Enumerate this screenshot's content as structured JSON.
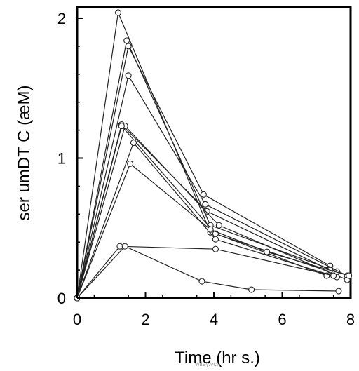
{
  "chart_data": {
    "type": "line",
    "xlabel": "Time (hr s.)",
    "ylabel": "ser umDT C (æM)",
    "xlim": [
      0,
      8
    ],
    "ylim": [
      0,
      2.08
    ],
    "xticks": [
      0,
      2,
      4,
      6,
      8
    ],
    "yticks": [
      0,
      1,
      2
    ],
    "xtick_labels": [
      "0",
      "2",
      "4",
      "6",
      "8"
    ],
    "ytick_labels": [
      "0",
      "1",
      "2"
    ],
    "grid": false,
    "marker": "open-circle",
    "series": [
      {
        "x": [
          0,
          1.2,
          3.9,
          7.5
        ],
        "y": [
          0,
          2.04,
          0.47,
          0.18
        ]
      },
      {
        "x": [
          0,
          1.45,
          3.9,
          7.6
        ],
        "y": [
          0,
          1.84,
          0.52,
          0.19
        ]
      },
      {
        "x": [
          0,
          1.5,
          3.7,
          7.4
        ],
        "y": [
          0,
          1.8,
          0.74,
          0.23
        ]
      },
      {
        "x": [
          0,
          1.5,
          3.75,
          7.9
        ],
        "y": [
          0,
          1.59,
          0.67,
          0.16
        ]
      },
      {
        "x": [
          0,
          1.3,
          3.8,
          7.4
        ],
        "y": [
          0,
          1.24,
          0.62,
          0.2
        ]
      },
      {
        "x": [
          0,
          1.4,
          4.15,
          7.9
        ],
        "y": [
          0,
          1.23,
          0.52,
          0.13
        ]
      },
      {
        "x": [
          0,
          1.3,
          4.05,
          7.3
        ],
        "y": [
          0,
          1.23,
          0.46,
          0.16
        ]
      },
      {
        "x": [
          0,
          1.65,
          4.05,
          7.6
        ],
        "y": [
          0,
          1.11,
          0.42,
          0.15
        ]
      },
      {
        "x": [
          0,
          1.55,
          3.9,
          5.55,
          7.95
        ],
        "y": [
          0,
          0.96,
          0.49,
          0.33,
          0.16
        ]
      },
      {
        "x": [
          0,
          1.25,
          4.05,
          7.5
        ],
        "y": [
          0,
          0.37,
          0.35,
          0.16
        ]
      },
      {
        "x": [
          0,
          1.4,
          3.65,
          5.1,
          7.65
        ],
        "y": [
          0,
          0.37,
          0.12,
          0.06,
          0.05
        ]
      }
    ]
  },
  "watermark_text": "wiley.vch"
}
